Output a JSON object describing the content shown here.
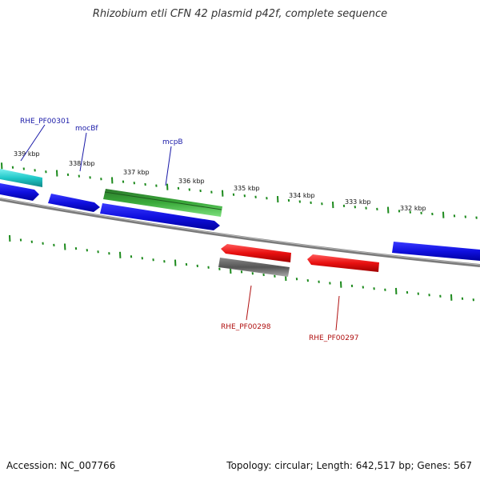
{
  "title": "Rhizobium etli CFN 42 plasmid p42f, complete sequence",
  "accession_label": "Accession: NC_007766",
  "summary_label": "Topology: circular; Length: 642,517 bp; Genes: 567",
  "colors": {
    "forward_gene": "#1010e0",
    "cyan_gene": "#20c8c8",
    "green_gene": "#2ea82e",
    "reverse_gene": "#e81010",
    "gray_gene": "#606060",
    "backbone": "#7a7a7a",
    "tick": "#1c8a1c",
    "forward_label": "#1a1aa8",
    "reverse_label": "#b01010"
  },
  "scale": {
    "kbp_labels": [
      "339 kbp",
      "338 kbp",
      "337 kbp",
      "336 kbp",
      "335 kbp",
      "334 kbp",
      "333 kbp",
      "332 kbp"
    ]
  },
  "genes": {
    "forward_labels": [
      "RHE_PF00301",
      "mocBf",
      "mcpB"
    ],
    "reverse_labels": [
      "RHE_PF00298",
      "RHE_PF00297"
    ]
  }
}
